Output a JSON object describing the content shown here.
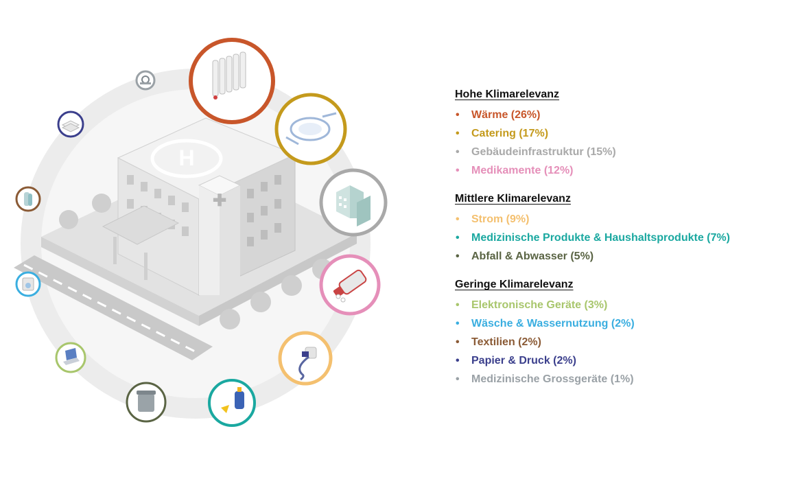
{
  "colors": {
    "waerme": "#c8562a",
    "catering": "#c49a1c",
    "gebaeude": "#a9a9a9",
    "medikamente": "#e58fb9",
    "strom": "#f4c06f",
    "medprodukte": "#1aa8a0",
    "abfall": "#5a6444",
    "elektronik": "#a8c66c",
    "waesche": "#3aaee0",
    "textilien": "#8a5a35",
    "papier": "#3b3f8c",
    "grossgeraete": "#9aa1a6"
  },
  "icons": {
    "top_ring": [
      "radiator-icon",
      "plate-cutlery-icon",
      "buildings-icon",
      "medicine-bottle-icon",
      "power-plug-icon",
      "cleaning-products-icon",
      "trash-bin-icon",
      "laptop-icon",
      "washing-machine-icon",
      "textile-icon",
      "paper-stack-icon",
      "medical-scanner-icon"
    ]
  },
  "legend": {
    "groups": [
      {
        "title": "Hohe Klimarelevanz",
        "items": [
          {
            "label": "Wärme (26%)",
            "color": "#c8562a"
          },
          {
            "label": "Catering (17%)",
            "color": "#c49a1c"
          },
          {
            "label": "Gebäudeinfrastruktur (15%)",
            "color": "#a9a9a9"
          },
          {
            "label": "Medikamente (12%)",
            "color": "#e58fb9"
          }
        ]
      },
      {
        "title": "Mittlere Klimarelevanz",
        "items": [
          {
            "label": "Strom (9%)",
            "color": "#f4c06f"
          },
          {
            "label": "Medizinische Produkte & Haushaltsprodukte (7%)",
            "color": "#1aa8a0"
          },
          {
            "label": "Abfall & Abwasser (5%)",
            "color": "#5a6444"
          }
        ]
      },
      {
        "title": "Geringe Klimarelevanz",
        "items": [
          {
            "label": "Elektronische Geräte (3%)",
            "color": "#a8c66c"
          },
          {
            "label": "Wäsche & Wassernutzung (2%)",
            "color": "#3aaee0"
          },
          {
            "label": "Textilien (2%)",
            "color": "#8a5a35"
          },
          {
            "label": "Papier & Druck (2%)",
            "color": "#3b3f8c"
          },
          {
            "label": "Medizinische Grossgeräte (1%)",
            "color": "#9aa1a6"
          }
        ]
      }
    ]
  }
}
